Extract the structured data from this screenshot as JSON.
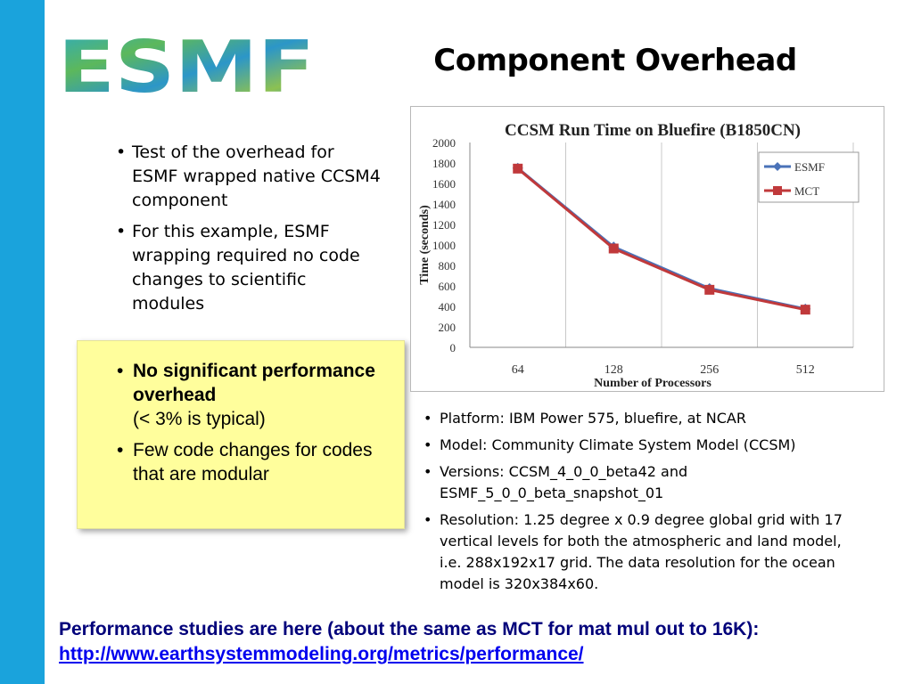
{
  "slide": {
    "logo_text": "ESMF",
    "title": "Component Overhead"
  },
  "left_bullets": [
    "Test of the overhead for ESMF wrapped native CCSM4 component",
    "For this example, ESMF wrapping required no code changes to scientific modules"
  ],
  "highlight": {
    "item1_bold": "No significant performance overhead",
    "item1_sub": "(< 3% is typical)",
    "item2": "Few code changes for codes that are modular"
  },
  "right_bullets": [
    "Platform: IBM Power 575, bluefire, at NCAR",
    "Model: Community Climate System Model (CCSM)",
    "Versions: CCSM_4_0_0_beta42 and ESMF_5_0_0_beta_snapshot_01",
    "Resolution: 1.25 degree x 0.9 degree global grid with 17 vertical levels for both the atmospheric and land model, i.e. 288x192x17 grid.  The data resolution for the ocean model is 320x384x60."
  ],
  "footer": {
    "text": "Performance studies are here (about the same as MCT for mat mul out to 16K):",
    "link": "http://www.earthsystemmodeling.org/metrics/performance/"
  },
  "colors": {
    "side_bar": "#1aa3dc",
    "esmf_series": "#4a72b8",
    "mct_series": "#c0393b",
    "highlight_bg": "#fffe9c"
  },
  "chart_data": {
    "type": "line",
    "title": "CCSM Run Time on Bluefire (B1850CN)",
    "xlabel": "Number of Processors",
    "ylabel": "Time (seconds)",
    "categories": [
      "64",
      "128",
      "256",
      "512"
    ],
    "series": [
      {
        "name": "ESMF",
        "values": [
          1750,
          980,
          575,
          375
        ],
        "color": "#4a72b8",
        "marker": "diamond"
      },
      {
        "name": "MCT",
        "values": [
          1745,
          965,
          562,
          368
        ],
        "color": "#c0393b",
        "marker": "square"
      }
    ],
    "ylim": [
      0,
      2000
    ],
    "yticks": [
      0,
      200,
      400,
      600,
      800,
      1000,
      1200,
      1400,
      1600,
      1800,
      2000
    ],
    "grid": "vertical",
    "legend": "top-right"
  }
}
